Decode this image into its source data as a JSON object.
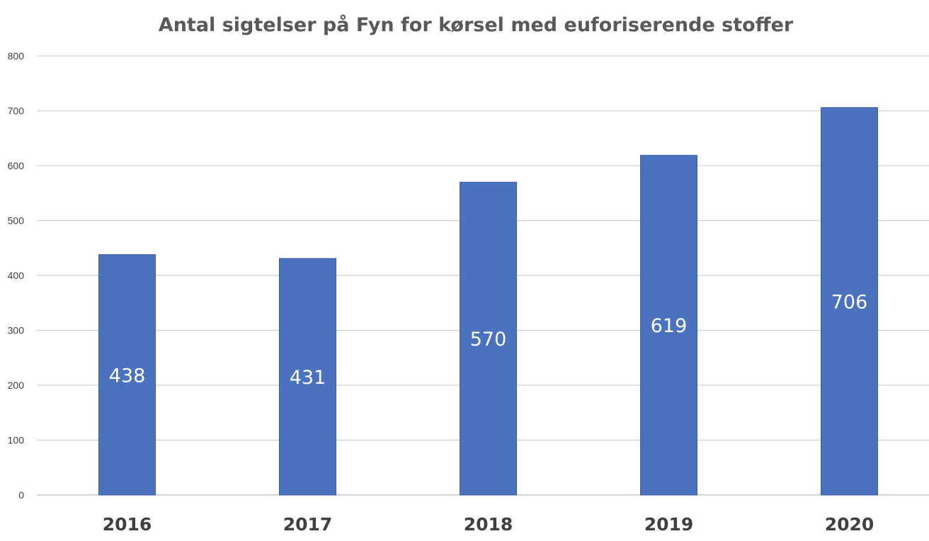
{
  "chart_data": {
    "type": "bar",
    "title": "Antal sigtelser på Fyn for kørsel med euforiserende stoffer",
    "xlabel": "",
    "ylabel": "",
    "categories": [
      "2016",
      "2017",
      "2018",
      "2019",
      "2020"
    ],
    "values": [
      438,
      431,
      570,
      619,
      706
    ],
    "data_labels": [
      "438",
      "431",
      "570",
      "619",
      "706"
    ],
    "ylim": [
      0,
      800
    ],
    "y_ticks": [
      0,
      100,
      200,
      300,
      400,
      500,
      600,
      700,
      800
    ],
    "grid": true,
    "legend": "none",
    "colors": {
      "bar": "#4a72bf",
      "bar_edge": "#3b5fa3",
      "grid": "#d0d0d0",
      "title": "#595959",
      "data_label": "#ffffff"
    }
  }
}
